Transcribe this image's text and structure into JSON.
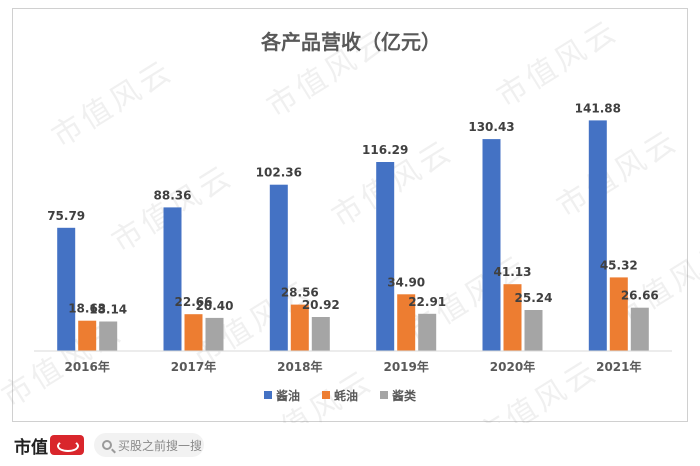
{
  "chart_data": {
    "type": "bar",
    "title": "各产品营收（亿元）",
    "categories": [
      "2016年",
      "2017年",
      "2018年",
      "2019年",
      "2020年",
      "2021年"
    ],
    "series": [
      {
        "name": "酱油",
        "color": "#4472C4",
        "values": [
          75.79,
          88.36,
          102.36,
          116.29,
          130.43,
          141.88
        ]
      },
      {
        "name": "蚝油",
        "color": "#ED7D31",
        "values": [
          18.63,
          22.66,
          28.56,
          34.9,
          41.13,
          45.32
        ]
      },
      {
        "name": "酱类",
        "color": "#A5A5A5",
        "values": [
          18.14,
          20.4,
          20.92,
          22.91,
          25.24,
          26.66
        ]
      }
    ],
    "value_labels": [
      [
        "75.79",
        "88.36",
        "102.36",
        "116.29",
        "130.43",
        "141.88"
      ],
      [
        "18.63",
        "22.66",
        "28.56",
        "34.90",
        "41.13",
        "45.32"
      ],
      [
        "18.14",
        "20.40",
        "20.92",
        "22.91",
        "25.24",
        "26.66"
      ]
    ],
    "ylim": [
      0,
      160
    ],
    "grid": false,
    "legend_position": "bottom"
  },
  "watermark": "市值风云",
  "footer": {
    "brand": "市值",
    "search_placeholder": "买股之前搜一搜",
    "search_icon": "search-icon"
  }
}
